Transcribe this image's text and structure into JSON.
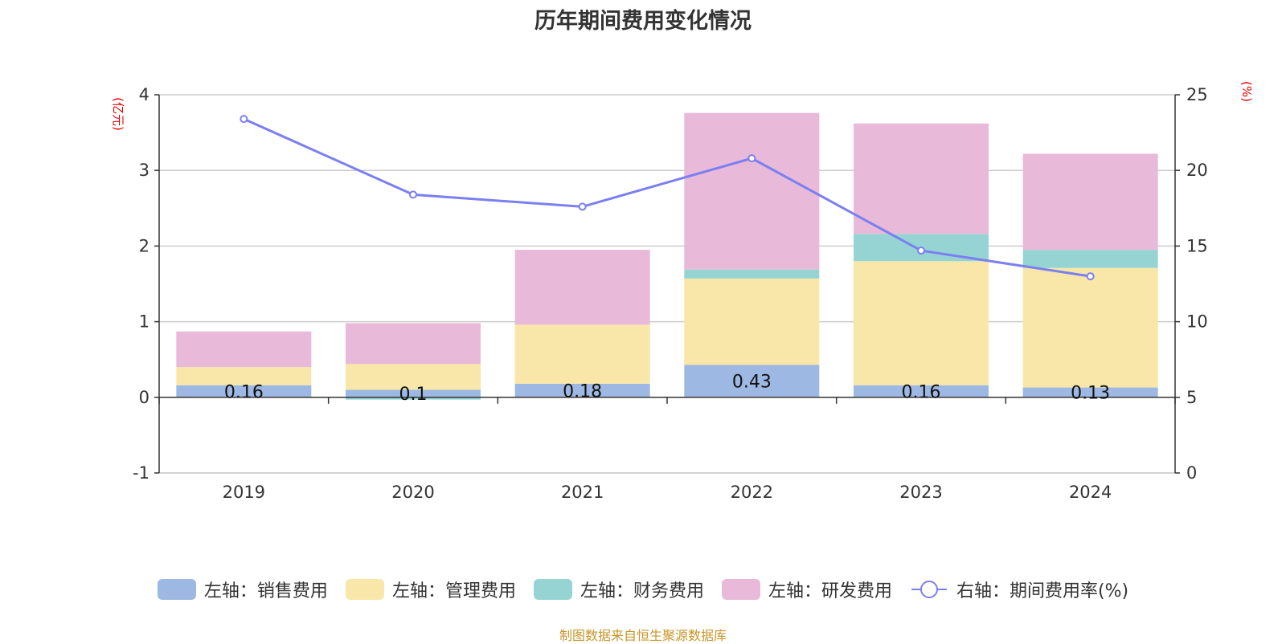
{
  "chart_data": {
    "type": "bar",
    "title": "历年期间费用变化情况",
    "categories": [
      "2019",
      "2020",
      "2021",
      "2022",
      "2023",
      "2024"
    ],
    "left_axis": {
      "unit": "(亿元)",
      "range": [
        -1,
        4
      ],
      "ticks": [
        "-1",
        "0",
        "1",
        "2",
        "3",
        "4"
      ]
    },
    "right_axis": {
      "unit": "(%)",
      "range": [
        0,
        25
      ],
      "ticks": [
        "0",
        "5",
        "10",
        "15",
        "20",
        "25"
      ]
    },
    "series": [
      {
        "name": "左轴：销售费用",
        "kind": "bar",
        "axis": "left",
        "color": "#9db8e2",
        "values": [
          0.16,
          0.1,
          0.18,
          0.43,
          0.16,
          0.13
        ],
        "labels": [
          "0.16",
          "0.1",
          "0.18",
          "0.43",
          "0.16",
          "0.13"
        ]
      },
      {
        "name": "左轴：管理费用",
        "kind": "bar",
        "axis": "left",
        "color": "#f8e7a8",
        "values": [
          0.24,
          0.34,
          0.78,
          1.14,
          1.64,
          1.58
        ]
      },
      {
        "name": "左轴：财务费用",
        "kind": "bar",
        "axis": "left",
        "color": "#96d4d4",
        "values": [
          0.0,
          -0.03,
          0.0,
          0.12,
          0.36,
          0.24
        ]
      },
      {
        "name": "左轴：研发费用",
        "kind": "bar",
        "axis": "left",
        "color": "#e8b9d9",
        "values": [
          0.47,
          0.54,
          0.99,
          2.07,
          1.46,
          1.27
        ]
      },
      {
        "name": "右轴：期间费用率(%)",
        "kind": "line",
        "axis": "right",
        "color": "#7b7ff0",
        "values": [
          23.4,
          18.4,
          17.6,
          20.8,
          14.7,
          13.0
        ]
      }
    ],
    "grid": true,
    "legend_position": "bottom"
  },
  "footer": {
    "source": "制图数据来自恒生聚源数据库"
  }
}
